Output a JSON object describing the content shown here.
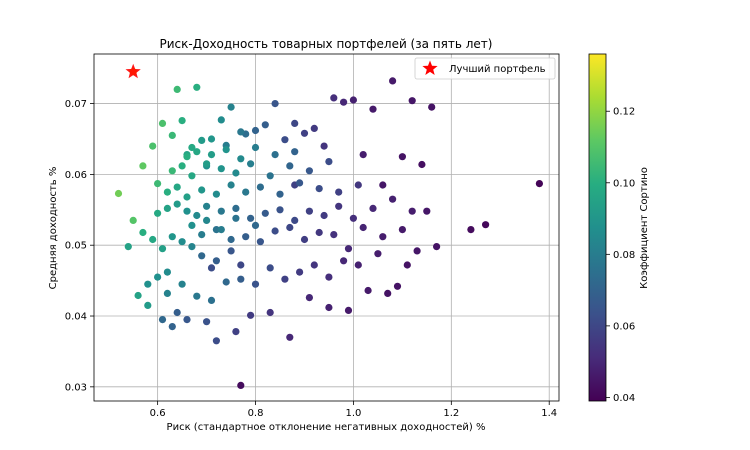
{
  "chart_data": {
    "type": "scatter",
    "title": "Риск-Доходность товарных портфелей (за пять лет)",
    "xlabel": "Риск (стандартное отклонение негативных доходностей) %",
    "ylabel": "Средняя доходность %",
    "xlim": [
      0.47,
      1.42
    ],
    "ylim": [
      0.028,
      0.077
    ],
    "xticks": [
      0.6,
      0.8,
      1.0,
      1.2,
      1.4
    ],
    "xtick_labels": [
      "0.6",
      "0.8",
      "1.0",
      "1.2",
      "1.4"
    ],
    "yticks": [
      0.03,
      0.04,
      0.05,
      0.06,
      0.07
    ],
    "ytick_labels": [
      "0.03",
      "0.04",
      "0.05",
      "0.06",
      "0.07"
    ],
    "grid": true,
    "legend": {
      "position": "top-right",
      "entries": [
        {
          "label": "Лучший портфель",
          "marker": "star",
          "color": "#ff0000"
        }
      ]
    },
    "colorbar": {
      "label": "Коэффициент Сортино",
      "colormap": "viridis",
      "range": [
        0.039,
        0.136
      ],
      "ticks": [
        0.04,
        0.06,
        0.08,
        0.1,
        0.12
      ],
      "tick_labels": [
        "0.04",
        "0.06",
        "0.08",
        "0.10",
        "0.12"
      ]
    },
    "best_portfolio": {
      "x": 0.55,
      "y": 0.0745
    },
    "series": [
      {
        "x": [
          0.55,
          0.64,
          0.68,
          0.52,
          0.55,
          0.57,
          0.59,
          0.6,
          0.61,
          0.63,
          0.65,
          0.67,
          0.69,
          0.71,
          0.73,
          0.75,
          0.77,
          0.54,
          0.58,
          0.62,
          0.66,
          0.7,
          0.74,
          0.78,
          0.8,
          0.82,
          0.84,
          0.86,
          0.88,
          0.9,
          0.92,
          0.94,
          0.96,
          0.98,
          1.0,
          1.02,
          1.04,
          1.06,
          1.08,
          1.1,
          1.12,
          1.14,
          1.16,
          1.24,
          1.27,
          1.38,
          0.77,
          0.61,
          0.63,
          0.64,
          0.66,
          0.7,
          0.72,
          0.76,
          0.79,
          0.83,
          0.87,
          0.91,
          0.95,
          0.99,
          1.03,
          1.07,
          1.09,
          1.11,
          0.56,
          0.58,
          0.6,
          0.62,
          0.65,
          0.68,
          0.71,
          0.74,
          0.77,
          0.8,
          0.83,
          0.86,
          0.89,
          0.92,
          0.95,
          0.98,
          1.01,
          1.05,
          1.13,
          1.17,
          0.57,
          0.59,
          0.61,
          0.63,
          0.65,
          0.67,
          0.69,
          0.72,
          0.75,
          0.78,
          0.81,
          0.84,
          0.87,
          0.9,
          0.93,
          0.96,
          0.99,
          1.02,
          1.06,
          1.1,
          1.15,
          0.6,
          0.62,
          0.64,
          0.66,
          0.68,
          0.7,
          0.73,
          0.76,
          0.79,
          0.82,
          0.85,
          0.88,
          0.91,
          0.94,
          0.97,
          1.0,
          1.04,
          1.08,
          1.12,
          0.62,
          0.64,
          0.66,
          0.69,
          0.72,
          0.75,
          0.78,
          0.81,
          0.85,
          0.89,
          0.93,
          0.97,
          1.01,
          0.63,
          0.65,
          0.67,
          0.7,
          0.73,
          0.76,
          0.79,
          0.83,
          0.87,
          0.91,
          0.95,
          0.66,
          0.68,
          0.71,
          0.74,
          0.77,
          0.8,
          0.84,
          0.88,
          0.67,
          0.7,
          0.73,
          0.76,
          0.8,
          0.69,
          0.72,
          0.75,
          0.71,
          0.77,
          0.88
        ],
        "y": [
          0.0745,
          0.072,
          0.0723,
          0.0573,
          0.0535,
          0.0612,
          0.064,
          0.0587,
          0.0672,
          0.0655,
          0.0676,
          0.0638,
          0.0648,
          0.065,
          0.0677,
          0.0695,
          0.066,
          0.0498,
          0.0445,
          0.0432,
          0.0628,
          0.0612,
          0.0641,
          0.0657,
          0.0662,
          0.067,
          0.07,
          0.0649,
          0.0672,
          0.0658,
          0.0665,
          0.064,
          0.0708,
          0.0702,
          0.0705,
          0.0628,
          0.0692,
          0.0585,
          0.0732,
          0.0625,
          0.0704,
          0.0614,
          0.0695,
          0.0522,
          0.0529,
          0.0587,
          0.0302,
          0.0395,
          0.0385,
          0.0405,
          0.0395,
          0.0392,
          0.0365,
          0.0378,
          0.0401,
          0.0405,
          0.037,
          0.0426,
          0.0412,
          0.0408,
          0.0436,
          0.0432,
          0.0442,
          0.0472,
          0.0429,
          0.0415,
          0.0455,
          0.0462,
          0.0445,
          0.0428,
          0.0422,
          0.0448,
          0.0452,
          0.0445,
          0.0468,
          0.0452,
          0.0462,
          0.0472,
          0.0455,
          0.0478,
          0.0472,
          0.0488,
          0.0492,
          0.0498,
          0.0518,
          0.0508,
          0.0495,
          0.0512,
          0.0505,
          0.0498,
          0.0515,
          0.0522,
          0.0508,
          0.0512,
          0.0505,
          0.052,
          0.0525,
          0.0508,
          0.0518,
          0.0515,
          0.0495,
          0.0525,
          0.0512,
          0.0522,
          0.0548,
          0.0545,
          0.0552,
          0.0558,
          0.0548,
          0.0542,
          0.0555,
          0.0548,
          0.0552,
          0.0538,
          0.0545,
          0.055,
          0.0535,
          0.0548,
          0.0542,
          0.0555,
          0.0538,
          0.0552,
          0.0565,
          0.0548,
          0.0575,
          0.0582,
          0.0568,
          0.0578,
          0.0572,
          0.0585,
          0.0575,
          0.0582,
          0.0572,
          0.0588,
          0.058,
          0.0575,
          0.0585,
          0.0605,
          0.0612,
          0.0598,
          0.0615,
          0.0608,
          0.0602,
          0.0615,
          0.0598,
          0.0612,
          0.0605,
          0.0618,
          0.0625,
          0.0632,
          0.0628,
          0.0635,
          0.0622,
          0.0638,
          0.0628,
          0.0632,
          0.0528,
          0.0535,
          0.0522,
          0.0538,
          0.0528,
          0.0485,
          0.0478,
          0.0492,
          0.0468,
          0.0472,
          0.0585
        ],
        "c": [
          0.136,
          0.105,
          0.1,
          0.115,
          0.11,
          0.112,
          0.108,
          0.105,
          0.108,
          0.104,
          0.1,
          0.098,
          0.092,
          0.09,
          0.086,
          0.082,
          0.078,
          0.095,
          0.088,
          0.082,
          0.096,
          0.088,
          0.08,
          0.074,
          0.07,
          0.068,
          0.065,
          0.062,
          0.06,
          0.058,
          0.056,
          0.054,
          0.052,
          0.05,
          0.048,
          0.047,
          0.046,
          0.045,
          0.046,
          0.044,
          0.045,
          0.043,
          0.044,
          0.042,
          0.041,
          0.04,
          0.042,
          0.072,
          0.07,
          0.068,
          0.066,
          0.064,
          0.062,
          0.058,
          0.056,
          0.054,
          0.05,
          0.05,
          0.048,
          0.046,
          0.046,
          0.044,
          0.044,
          0.044,
          0.095,
          0.092,
          0.088,
          0.086,
          0.082,
          0.078,
          0.075,
          0.072,
          0.068,
          0.064,
          0.062,
          0.058,
          0.056,
          0.054,
          0.052,
          0.05,
          0.048,
          0.047,
          0.045,
          0.044,
          0.1,
          0.097,
          0.094,
          0.09,
          0.086,
          0.083,
          0.08,
          0.076,
          0.072,
          0.068,
          0.065,
          0.062,
          0.06,
          0.057,
          0.055,
          0.053,
          0.05,
          0.049,
          0.047,
          0.046,
          0.045,
          0.098,
          0.095,
          0.092,
          0.088,
          0.085,
          0.082,
          0.078,
          0.074,
          0.07,
          0.067,
          0.064,
          0.061,
          0.058,
          0.056,
          0.054,
          0.052,
          0.05,
          0.048,
          0.047,
          0.1,
          0.097,
          0.094,
          0.09,
          0.086,
          0.082,
          0.078,
          0.074,
          0.07,
          0.066,
          0.062,
          0.058,
          0.055,
          0.104,
          0.1,
          0.097,
          0.093,
          0.089,
          0.085,
          0.081,
          0.076,
          0.071,
          0.066,
          0.062,
          0.1,
          0.097,
          0.093,
          0.089,
          0.085,
          0.08,
          0.075,
          0.07,
          0.088,
          0.084,
          0.08,
          0.076,
          0.072,
          0.072,
          0.068,
          0.065,
          0.062,
          0.06,
          0.058
        ]
      }
    ]
  }
}
